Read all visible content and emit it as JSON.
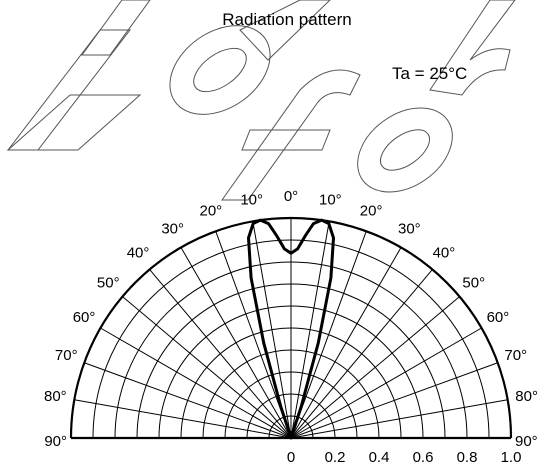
{
  "chart_data": {
    "type": "polar-line",
    "title": "Radiation pattern",
    "annotation": "Ta = 25°C",
    "watermark": "Not for",
    "angle_range_deg": [
      -90,
      90
    ],
    "radial_range": [
      0,
      1.0
    ],
    "angle_ticks": [
      {
        "angle": -90,
        "label": "90°"
      },
      {
        "angle": -80,
        "label": "80°"
      },
      {
        "angle": -70,
        "label": "70°"
      },
      {
        "angle": -60,
        "label": "60°"
      },
      {
        "angle": -50,
        "label": "50°"
      },
      {
        "angle": -40,
        "label": "40°"
      },
      {
        "angle": -30,
        "label": "30°"
      },
      {
        "angle": -20,
        "label": "20°"
      },
      {
        "angle": -10,
        "label": "10°"
      },
      {
        "angle": 0,
        "label": "0°"
      },
      {
        "angle": 10,
        "label": "10°"
      },
      {
        "angle": 20,
        "label": "20°"
      },
      {
        "angle": 30,
        "label": "30°"
      },
      {
        "angle": 40,
        "label": "40°"
      },
      {
        "angle": 50,
        "label": "50°"
      },
      {
        "angle": 60,
        "label": "60°"
      },
      {
        "angle": 70,
        "label": "70°"
      },
      {
        "angle": 80,
        "label": "80°"
      },
      {
        "angle": 90,
        "label": "90°"
      }
    ],
    "radial_ticks": [
      "0",
      "0.2",
      "0.4",
      "0.6",
      "0.8",
      "1.0"
    ],
    "series": [
      {
        "points": [
          {
            "angle": -20,
            "r": 0.0
          },
          {
            "angle": -18,
            "r": 0.15
          },
          {
            "angle": -16,
            "r": 0.45
          },
          {
            "angle": -14,
            "r": 0.75
          },
          {
            "angle": -12,
            "r": 0.93
          },
          {
            "angle": -10,
            "r": 0.99
          },
          {
            "angle": -8,
            "r": 1.0
          },
          {
            "angle": -6,
            "r": 0.98
          },
          {
            "angle": -4,
            "r": 0.92
          },
          {
            "angle": -2,
            "r": 0.86
          },
          {
            "angle": 0,
            "r": 0.84
          },
          {
            "angle": 2,
            "r": 0.86
          },
          {
            "angle": 4,
            "r": 0.92
          },
          {
            "angle": 6,
            "r": 0.98
          },
          {
            "angle": 8,
            "r": 1.0
          },
          {
            "angle": 10,
            "r": 0.99
          },
          {
            "angle": 12,
            "r": 0.93
          },
          {
            "angle": 14,
            "r": 0.75
          },
          {
            "angle": 16,
            "r": 0.45
          },
          {
            "angle": 18,
            "r": 0.15
          },
          {
            "angle": 20,
            "r": 0.0
          }
        ]
      }
    ],
    "grid": true
  }
}
